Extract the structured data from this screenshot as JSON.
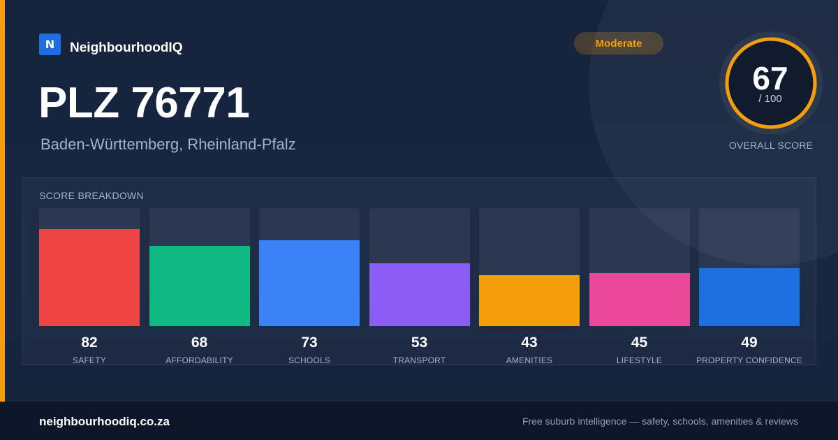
{
  "colors": {
    "accent": "#f59e0b",
    "brand": "#1d6fe0",
    "track": "#2c3a55"
  },
  "brand": {
    "logo_letter": "N",
    "name": "NeighbourhoodIQ"
  },
  "badge": {
    "label": "Moderate"
  },
  "header": {
    "title": "PLZ 76771",
    "subtitle": "Baden-Württemberg, Rheinland-Pfalz"
  },
  "overall": {
    "value": "67",
    "max": "/ 100",
    "fraction": 0.67,
    "label": "OVERALL SCORE"
  },
  "chart_data": {
    "type": "bar",
    "title": "SCORE BREAKDOWN",
    "ylim": [
      0,
      100
    ],
    "categories": [
      "SAFETY",
      "AFFORDABILITY",
      "SCHOOLS",
      "TRANSPORT",
      "AMENITIES",
      "LIFESTYLE",
      "PROPERTY CONFIDENCE"
    ],
    "values": [
      82,
      68,
      73,
      53,
      43,
      45,
      49
    ],
    "bar_colors": [
      "#ef4444",
      "#10b981",
      "#3b82f6",
      "#8b5cf6",
      "#f59e0b",
      "#ec4899",
      "#1d6fe0"
    ],
    "grid": false,
    "legend": "none"
  },
  "footer": {
    "site": "neighbourhoodiq.co.za",
    "tagline": "Free suburb intelligence — safety, schools, amenities & reviews"
  }
}
